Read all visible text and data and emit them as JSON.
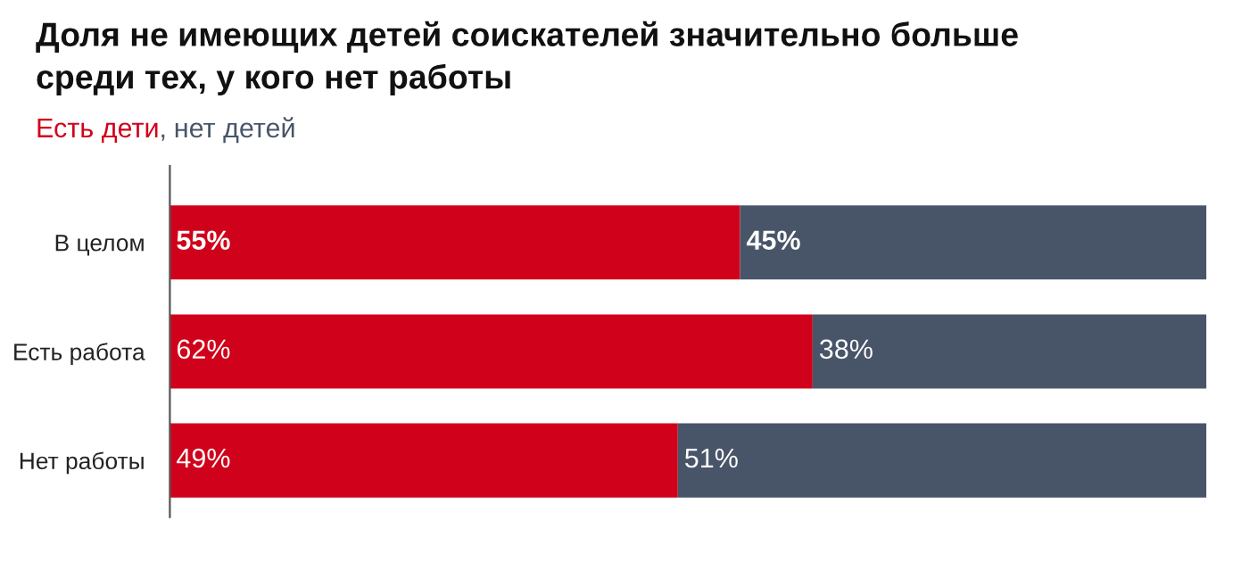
{
  "chart_data": {
    "type": "bar",
    "orientation": "horizontal",
    "stacked": true,
    "annotations": [
      ","
    ],
    "title": "Доля не имеющих детей соискателей значительно больше\nсреди тех, у кого нет работы",
    "categories": [
      "В целом",
      "Есть работа",
      "Нет работы"
    ],
    "series": [
      {
        "name": "Есть дети",
        "color": "#d0021b",
        "values": [
          55,
          62,
          49
        ],
        "value_labels": [
          "55%",
          "62%",
          "49%"
        ]
      },
      {
        "name": "нет детей",
        "color": "#485468",
        "values": [
          45,
          38,
          51
        ],
        "value_labels": [
          "45%",
          "38%",
          "51%"
        ]
      }
    ],
    "legend": "top left",
    "grid": false
  }
}
